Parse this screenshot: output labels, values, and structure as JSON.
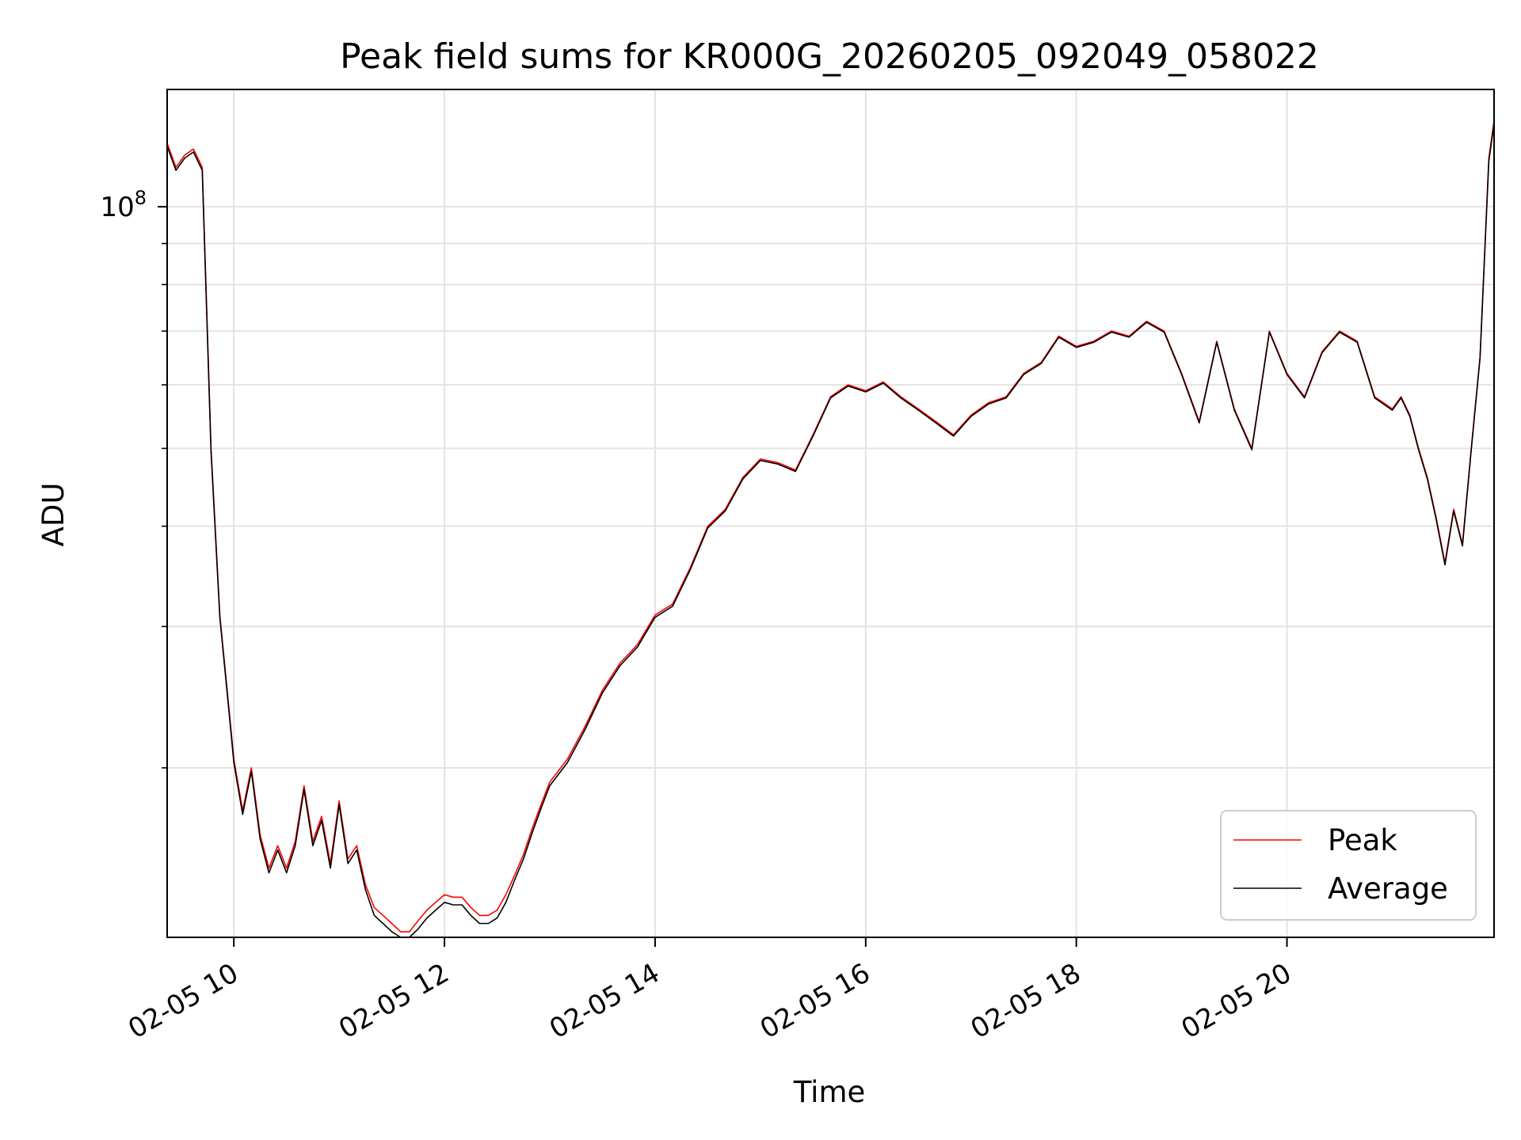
{
  "chart_data": {
    "type": "line",
    "title": "Peak field sums for KR000G_20260205_092049_058022",
    "xlabel": "Time",
    "ylabel": "ADU",
    "xscale": "time",
    "yscale": "log",
    "xlim": [
      "2026-02-05 09:22",
      "2026-02-05 21:58"
    ],
    "ylim": [
      12300000,
      140000000
    ],
    "x_ticks": [
      {
        "value": "2026-02-05 10:00",
        "label": "02-05 10"
      },
      {
        "value": "2026-02-05 12:00",
        "label": "02-05 12"
      },
      {
        "value": "2026-02-05 14:00",
        "label": "02-05 14"
      },
      {
        "value": "2026-02-05 16:00",
        "label": "02-05 16"
      },
      {
        "value": "2026-02-05 18:00",
        "label": "02-05 18"
      },
      {
        "value": "2026-02-05 20:00",
        "label": "02-05 20"
      }
    ],
    "y_major_ticks": [
      {
        "value": 100000000,
        "base": "10",
        "exp": "8"
      }
    ],
    "y_minor_ticks": [
      20000000,
      30000000,
      40000000,
      50000000,
      60000000,
      70000000,
      80000000,
      90000000
    ],
    "grid": true,
    "legend": {
      "position": "lower-right",
      "entries": [
        "Peak",
        "Average"
      ]
    },
    "x": [
      "2026-02-05 09:22",
      "2026-02-05 09:27",
      "2026-02-05 09:32",
      "2026-02-05 09:37",
      "2026-02-05 09:42",
      "2026-02-05 09:47",
      "2026-02-05 09:52",
      "2026-02-05 09:57",
      "2026-02-05 10:00",
      "2026-02-05 10:05",
      "2026-02-05 10:10",
      "2026-02-05 10:15",
      "2026-02-05 10:20",
      "2026-02-05 10:25",
      "2026-02-05 10:30",
      "2026-02-05 10:35",
      "2026-02-05 10:40",
      "2026-02-05 10:45",
      "2026-02-05 10:50",
      "2026-02-05 10:55",
      "2026-02-05 11:00",
      "2026-02-05 11:05",
      "2026-02-05 11:10",
      "2026-02-05 11:15",
      "2026-02-05 11:20",
      "2026-02-05 11:25",
      "2026-02-05 11:30",
      "2026-02-05 11:35",
      "2026-02-05 11:40",
      "2026-02-05 11:45",
      "2026-02-05 11:50",
      "2026-02-05 11:55",
      "2026-02-05 12:00",
      "2026-02-05 12:05",
      "2026-02-05 12:10",
      "2026-02-05 12:15",
      "2026-02-05 12:20",
      "2026-02-05 12:25",
      "2026-02-05 12:30",
      "2026-02-05 12:35",
      "2026-02-05 12:40",
      "2026-02-05 12:45",
      "2026-02-05 12:50",
      "2026-02-05 12:55",
      "2026-02-05 13:00",
      "2026-02-05 13:10",
      "2026-02-05 13:20",
      "2026-02-05 13:30",
      "2026-02-05 13:40",
      "2026-02-05 13:50",
      "2026-02-05 14:00",
      "2026-02-05 14:10",
      "2026-02-05 14:20",
      "2026-02-05 14:30",
      "2026-02-05 14:40",
      "2026-02-05 14:50",
      "2026-02-05 15:00",
      "2026-02-05 15:10",
      "2026-02-05 15:20",
      "2026-02-05 15:30",
      "2026-02-05 15:40",
      "2026-02-05 15:50",
      "2026-02-05 16:00",
      "2026-02-05 16:10",
      "2026-02-05 16:20",
      "2026-02-05 16:30",
      "2026-02-05 16:40",
      "2026-02-05 16:50",
      "2026-02-05 17:00",
      "2026-02-05 17:10",
      "2026-02-05 17:20",
      "2026-02-05 17:30",
      "2026-02-05 17:40",
      "2026-02-05 17:50",
      "2026-02-05 18:00",
      "2026-02-05 18:10",
      "2026-02-05 18:20",
      "2026-02-05 18:30",
      "2026-02-05 18:40",
      "2026-02-05 18:50",
      "2026-02-05 19:00",
      "2026-02-05 19:10",
      "2026-02-05 19:20",
      "2026-02-05 19:30",
      "2026-02-05 19:40",
      "2026-02-05 19:50",
      "2026-02-05 20:00",
      "2026-02-05 20:10",
      "2026-02-05 20:20",
      "2026-02-05 20:30",
      "2026-02-05 20:40",
      "2026-02-05 20:50",
      "2026-02-05 21:00",
      "2026-02-05 21:05",
      "2026-02-05 21:10",
      "2026-02-05 21:15",
      "2026-02-05 21:20",
      "2026-02-05 21:25",
      "2026-02-05 21:30",
      "2026-02-05 21:35",
      "2026-02-05 21:40",
      "2026-02-05 21:45",
      "2026-02-05 21:50",
      "2026-02-05 21:55",
      "2026-02-05 21:58"
    ],
    "series": [
      {
        "name": "Peak",
        "color": "#ff0000",
        "values": [
          120000000,
          112000000,
          116000000,
          118000000,
          112000000,
          50000000,
          31000000,
          24000000,
          20500000,
          17700000,
          20000000,
          16500000,
          15000000,
          16000000,
          15000000,
          16200000,
          19000000,
          16200000,
          17400000,
          15200000,
          18200000,
          15400000,
          16000000,
          14300000,
          13400000,
          13100000,
          12800000,
          12500000,
          12500000,
          12900000,
          13300000,
          13600000,
          13900000,
          13800000,
          13800000,
          13400000,
          13100000,
          13100000,
          13300000,
          13900000,
          14700000,
          15600000,
          16800000,
          18000000,
          19200000,
          20500000,
          22500000,
          25000000,
          27000000,
          28500000,
          31000000,
          32000000,
          35500000,
          40000000,
          42000000,
          46000000,
          48500000,
          48000000,
          47000000,
          52000000,
          58000000,
          60000000,
          59000000,
          60500000,
          58000000,
          56000000,
          54000000,
          52000000,
          55000000,
          57000000,
          58000000,
          62000000,
          64000000,
          69000000,
          67000000,
          68000000,
          70000000,
          69000000,
          72000000,
          70000000,
          62000000,
          54000000,
          68000000,
          56000000,
          50000000,
          70000000,
          62000000,
          58000000,
          66000000,
          70000000,
          68000000,
          58000000,
          56000000,
          58000000,
          55000000,
          50000000,
          46000000,
          41000000,
          36000000,
          42000000,
          38000000,
          50000000,
          65000000,
          115000000,
          128000000
        ]
      },
      {
        "name": "Average",
        "color": "#000000",
        "values": [
          119000000,
          111000000,
          115000000,
          117000000,
          111000000,
          49500000,
          30800000,
          23800000,
          20300000,
          17500000,
          19800000,
          16300000,
          14800000,
          15800000,
          14800000,
          16000000,
          18800000,
          16000000,
          17200000,
          15000000,
          18000000,
          15200000,
          15800000,
          14100000,
          13100000,
          12800000,
          12500000,
          12300000,
          12300000,
          12600000,
          13000000,
          13300000,
          13600000,
          13500000,
          13500000,
          13100000,
          12800000,
          12800000,
          13000000,
          13600000,
          14500000,
          15400000,
          16600000,
          17800000,
          19000000,
          20300000,
          22300000,
          24800000,
          26800000,
          28300000,
          30800000,
          31800000,
          35300000,
          39800000,
          41800000,
          45800000,
          48300000,
          47800000,
          46800000,
          51800000,
          57800000,
          59800000,
          58800000,
          60300000,
          57800000,
          55800000,
          53800000,
          51800000,
          54800000,
          56800000,
          57800000,
          61800000,
          63800000,
          68800000,
          66800000,
          67800000,
          69800000,
          68800000,
          71800000,
          69800000,
          61800000,
          53800000,
          67800000,
          55800000,
          49800000,
          69800000,
          61800000,
          57800000,
          65800000,
          69800000,
          67800000,
          57800000,
          55800000,
          57800000,
          54800000,
          49800000,
          45800000,
          40800000,
          35800000,
          41800000,
          37800000,
          49800000,
          64800000,
          114000000,
          127000000
        ]
      }
    ]
  }
}
